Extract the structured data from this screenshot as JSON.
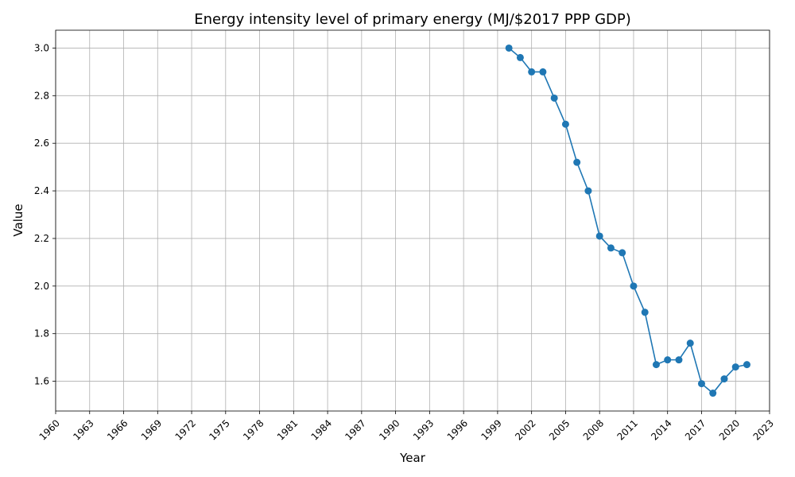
{
  "chart_data": {
    "type": "line",
    "title": "Energy intensity level of primary energy (MJ/$2017 PPP GDP)",
    "xlabel": "Year",
    "ylabel": "Value",
    "xlim": [
      1960,
      2023
    ],
    "ylim": [
      1.475,
      3.075
    ],
    "x_ticks": [
      1960,
      1963,
      1966,
      1969,
      1972,
      1975,
      1978,
      1981,
      1984,
      1987,
      1990,
      1993,
      1996,
      1999,
      2002,
      2005,
      2008,
      2011,
      2014,
      2017,
      2020,
      2023
    ],
    "y_ticks": [
      1.6,
      1.8,
      2.0,
      2.2,
      2.4,
      2.6,
      2.8,
      3.0
    ],
    "grid": true,
    "color": "#1f77b4",
    "x": [
      2000,
      2001,
      2002,
      2003,
      2004,
      2005,
      2006,
      2007,
      2008,
      2009,
      2010,
      2011,
      2012,
      2013,
      2014,
      2015,
      2016,
      2017,
      2018,
      2019,
      2020,
      2021
    ],
    "y": [
      3.0,
      2.96,
      2.9,
      2.9,
      2.79,
      2.68,
      2.52,
      2.4,
      2.21,
      2.16,
      2.14,
      2.0,
      1.89,
      1.67,
      1.69,
      1.69,
      1.76,
      1.59,
      1.55,
      1.61,
      1.66,
      1.67
    ]
  }
}
